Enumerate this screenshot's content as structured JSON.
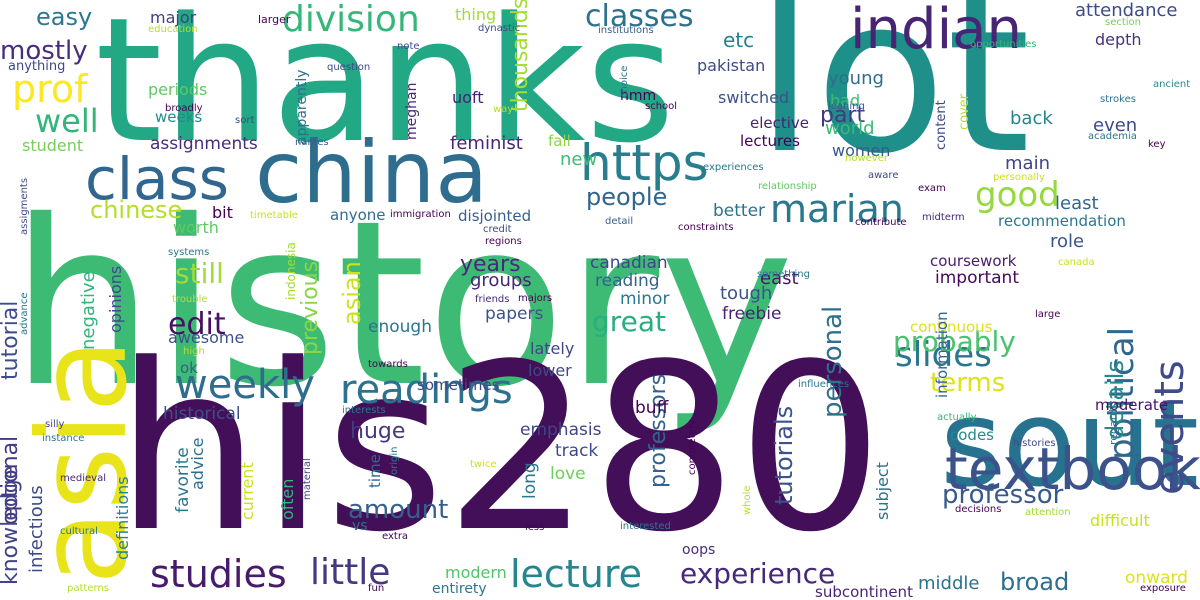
{
  "words": [
    {
      "text": "history",
      "color": "#3dbb74",
      "rot": 0
    },
    {
      "text": "lot",
      "color": "#1f8f8a",
      "rot": 0
    },
    {
      "text": "thanks",
      "color": "#22a884",
      "rot": 0
    },
    {
      "text": "his280",
      "color": "#440f59",
      "rot": 0
    },
    {
      "text": "south",
      "color": "#27728e",
      "rot": 0
    },
    {
      "text": "asia",
      "color": "#e8e419",
      "rot": -90
    },
    {
      "text": "china",
      "color": "#2f6d8e",
      "rot": 0
    },
    {
      "text": "textbook",
      "color": "#3b528b",
      "rot": 0
    },
    {
      "text": "class",
      "color": "#31668e",
      "rot": 0
    },
    {
      "text": "indian",
      "color": "#482474",
      "rot": 0
    },
    {
      "text": "https",
      "color": "#287d8e",
      "rot": 0
    },
    {
      "text": "events",
      "color": "#3e4a89",
      "rot": -90
    },
    {
      "text": "political",
      "color": "#31678e",
      "rot": -90
    },
    {
      "text": "weekly",
      "color": "#2f6c8e",
      "rot": 0
    },
    {
      "text": "readings",
      "color": "#2c728e",
      "rot": 0
    },
    {
      "text": "lecture",
      "color": "#24868e",
      "rot": 0
    },
    {
      "text": "studies",
      "color": "#481a6c",
      "rot": 0
    },
    {
      "text": "little",
      "color": "#453781",
      "rot": 0
    },
    {
      "text": "experience",
      "color": "#482878",
      "rot": 0
    },
    {
      "text": "division",
      "color": "#35b779",
      "rot": 0
    },
    {
      "text": "classes",
      "color": "#2c728e",
      "rot": 0
    },
    {
      "text": "marian",
      "color": "#2a778e",
      "rot": 0
    },
    {
      "text": "good",
      "color": "#95d840",
      "rot": 0
    },
    {
      "text": "slides",
      "color": "#2b758e",
      "rot": 0
    },
    {
      "text": "prof",
      "color": "#fde725",
      "rot": 0
    },
    {
      "text": "well",
      "color": "#31b57b",
      "rot": 0
    },
    {
      "text": "mostly",
      "color": "#472d7b",
      "rot": 0
    },
    {
      "text": "easy",
      "color": "#2a788e",
      "rot": 0
    },
    {
      "text": "optional",
      "color": "#453882",
      "rot": -90
    },
    {
      "text": "tutorial",
      "color": "#3d4d8a",
      "rot": -90
    },
    {
      "text": "knowledge",
      "color": "#414487",
      "rot": -90
    },
    {
      "text": "chinese",
      "color": "#b5de2b",
      "rot": 0
    },
    {
      "text": "edit",
      "color": "#471063",
      "rot": 0
    },
    {
      "text": "still",
      "color": "#a2da37",
      "rot": 0
    },
    {
      "text": "probably",
      "color": "#4ac16d",
      "rot": 0
    },
    {
      "text": "terms",
      "color": "#dde318",
      "rot": 0
    },
    {
      "text": "great",
      "color": "#29af7f",
      "rot": 0
    },
    {
      "text": "professor",
      "color": "#38598c",
      "rot": 0
    },
    {
      "text": "broad",
      "color": "#2e6e8e",
      "rot": 0
    },
    {
      "text": "amount",
      "color": "#355f8d",
      "rot": 0
    },
    {
      "text": "personal",
      "color": "#2e6f8e",
      "rot": -90
    },
    {
      "text": "tutorials",
      "color": "#3b528b",
      "rot": -90
    },
    {
      "text": "professors",
      "color": "#33638d",
      "rot": -90
    },
    {
      "text": "previous",
      "color": "#8bd646",
      "rot": -90
    },
    {
      "text": "asian",
      "color": "#cde11d",
      "rot": -90
    },
    {
      "text": "details",
      "color": "#228c8d",
      "rot": -90
    },
    {
      "text": "thousands",
      "color": "#a8db34",
      "rot": -90
    },
    {
      "text": "part",
      "color": "#453882",
      "rot": 0
    },
    {
      "text": "people",
      "color": "#32658e",
      "rot": 0
    },
    {
      "text": "years",
      "color": "#472a7a",
      "rot": 0
    },
    {
      "text": "huge",
      "color": "#443983",
      "rot": 0
    },
    {
      "text": "etc",
      "color": "#26818e",
      "rot": 0
    },
    {
      "text": "world",
      "color": "#38b977",
      "rot": 0
    },
    {
      "text": "women",
      "color": "#38598c",
      "rot": 0
    },
    {
      "text": "young",
      "color": "#2e6f8e",
      "rot": 0
    },
    {
      "text": "bad",
      "color": "#3dbc74",
      "rot": 0
    },
    {
      "text": "back",
      "color": "#25858e",
      "rot": 0
    },
    {
      "text": "even",
      "color": "#3e4989",
      "rot": 0
    },
    {
      "text": "least",
      "color": "#31668e",
      "rot": 0
    },
    {
      "text": "role",
      "color": "#3a548c",
      "rot": 0
    },
    {
      "text": "main",
      "color": "#404588",
      "rot": 0
    },
    {
      "text": "pakistan",
      "color": "#3e4a89",
      "rot": 0
    },
    {
      "text": "assignments",
      "color": "#472d7b",
      "rot": 0
    },
    {
      "text": "feminist",
      "color": "#482576",
      "rot": 0
    },
    {
      "text": "lectures",
      "color": "#440154",
      "rot": 0
    },
    {
      "text": "elective",
      "color": "#482374",
      "rot": 0
    },
    {
      "text": "switched",
      "color": "#3b528b",
      "rot": 0
    },
    {
      "text": "uoft",
      "color": "#482071",
      "rot": 0
    },
    {
      "text": "attendance",
      "color": "#3e4a89",
      "rot": 0
    },
    {
      "text": "depth",
      "color": "#46337f",
      "rot": 0
    },
    {
      "text": "major",
      "color": "#433e85",
      "rot": 0
    },
    {
      "text": "thing",
      "color": "#a2da37",
      "rot": 0
    },
    {
      "text": "student",
      "color": "#75d054",
      "rot": 0
    },
    {
      "text": "new",
      "color": "#3dbc74",
      "rot": 0
    },
    {
      "text": "fall",
      "color": "#8bd646",
      "rot": 0
    },
    {
      "text": "better",
      "color": "#2c728e",
      "rot": 0
    },
    {
      "text": "bit",
      "color": "#440154",
      "rot": 0
    },
    {
      "text": "east",
      "color": "#481668",
      "rot": 0
    },
    {
      "text": "canadian",
      "color": "#3f4788",
      "rot": 0
    },
    {
      "text": "reading",
      "color": "#33628d",
      "rot": 0
    },
    {
      "text": "minor",
      "color": "#2a788e",
      "rot": 0
    },
    {
      "text": "tough",
      "color": "#3a548c",
      "rot": 0
    },
    {
      "text": "freebie",
      "color": "#482173",
      "rot": 0
    },
    {
      "text": "groups",
      "color": "#482576",
      "rot": 0
    },
    {
      "text": "papers",
      "color": "#3b528b",
      "rot": 0
    },
    {
      "text": "lately",
      "color": "#404588",
      "rot": 0
    },
    {
      "text": "lower",
      "color": "#3e4989",
      "rot": 0
    },
    {
      "text": "enough",
      "color": "#2a768e",
      "rot": 0
    },
    {
      "text": "disjointed",
      "color": "#355f8d",
      "rot": 0
    },
    {
      "text": "anyone",
      "color": "#2e6e8e",
      "rot": 0
    },
    {
      "text": "important",
      "color": "#46085c",
      "rot": 0
    },
    {
      "text": "coursework",
      "color": "#481b6d",
      "rot": 0
    },
    {
      "text": "recommendation",
      "color": "#2a768e",
      "rot": 0
    },
    {
      "text": "continuous",
      "color": "#dde318",
      "rot": 0
    },
    {
      "text": "information",
      "color": "#31678e",
      "rot": -90
    },
    {
      "text": "moderate",
      "color": "#471365",
      "rot": 0
    },
    {
      "text": "codes",
      "color": "#228b8d",
      "rot": 0
    },
    {
      "text": "difficult",
      "color": "#c8e020",
      "rot": 0
    },
    {
      "text": "middle",
      "color": "#2c718e",
      "rot": 0
    },
    {
      "text": "onward",
      "color": "#dde318",
      "rot": 0
    },
    {
      "text": "subcontinent",
      "color": "#482576",
      "rot": 0
    },
    {
      "text": "emphasis",
      "color": "#404588",
      "rot": 0
    },
    {
      "text": "track",
      "color": "#3e4989",
      "rot": 0
    },
    {
      "text": "love",
      "color": "#6ece58",
      "rot": 0
    },
    {
      "text": "long",
      "color": "#2a768e",
      "rot": -90
    },
    {
      "text": "time",
      "color": "#31678e",
      "rot": -90
    },
    {
      "text": "sometimes",
      "color": "#3e4989",
      "rot": 0
    },
    {
      "text": "historical",
      "color": "#3c4f8a",
      "rot": 0
    },
    {
      "text": "awesome",
      "color": "#3b528b",
      "rot": 0
    },
    {
      "text": "ok",
      "color": "#355f8d",
      "rot": 0
    },
    {
      "text": "modern",
      "color": "#50c46a",
      "rot": 0
    },
    {
      "text": "entirety",
      "color": "#2a778e",
      "rot": 0
    },
    {
      "text": "oops",
      "color": "#472d7b",
      "rot": 0
    },
    {
      "text": "favorite",
      "color": "#2a778e",
      "rot": -90
    },
    {
      "text": "advice",
      "color": "#2e6e8e",
      "rot": -90
    },
    {
      "text": "current",
      "color": "#cde11d",
      "rot": -90
    },
    {
      "text": "often",
      "color": "#35b779",
      "rot": -90
    },
    {
      "text": "subject",
      "color": "#2d718e",
      "rot": -90
    },
    {
      "text": "definitions",
      "color": "#26828e",
      "rot": -90
    },
    {
      "text": "infectious",
      "color": "#3e4989",
      "rot": -90
    },
    {
      "text": "negative",
      "color": "#31b57b",
      "rot": -90
    },
    {
      "text": "opinions",
      "color": "#3e4a89",
      "rot": -90
    },
    {
      "text": "buff",
      "color": "#440154",
      "rot": 0
    },
    {
      "text": "vs",
      "color": "#2a768e",
      "rot": 0
    },
    {
      "text": "periods",
      "color": "#5ec962",
      "rot": 0
    },
    {
      "text": "weeks",
      "color": "#228c8d",
      "rot": 0
    },
    {
      "text": "anything",
      "color": "#3e4989",
      "rot": 0
    },
    {
      "text": "hmm",
      "color": "#440154",
      "rot": 0
    },
    {
      "text": "meghan",
      "color": "#482878",
      "rot": -90
    },
    {
      "text": "apparently",
      "color": "#2c728e",
      "rot": -90
    },
    {
      "text": "content",
      "color": "#3e4989",
      "rot": -90
    },
    {
      "text": "cover",
      "color": "#b5de2b",
      "rot": -90
    },
    {
      "text": "worth",
      "color": "#5ec962",
      "rot": 0
    },
    {
      "text": "indonesia",
      "color": "#a2da37",
      "rot": -90
    },
    {
      "text": "regards",
      "color": "#2e6e8e",
      "rot": -90
    },
    {
      "text": "larger",
      "color": "#440154",
      "rot": 0
    },
    {
      "text": "education",
      "color": "#b5de2b",
      "rot": 0
    },
    {
      "text": "dynastic",
      "color": "#3e4989",
      "rot": 0
    },
    {
      "text": "institutions",
      "color": "#355f8d",
      "rot": 0
    },
    {
      "text": "section",
      "color": "#75d054",
      "rot": 0
    },
    {
      "text": "opportunities",
      "color": "#31b57b",
      "rot": 0
    },
    {
      "text": "ancient",
      "color": "#228b8d",
      "rot": 0
    },
    {
      "text": "strokes",
      "color": "#2c728e",
      "rot": 0
    },
    {
      "text": "academia",
      "color": "#2a768e",
      "rot": 0
    },
    {
      "text": "key",
      "color": "#440154",
      "rot": 0
    },
    {
      "text": "leaning",
      "color": "#3a548c",
      "rot": 0
    },
    {
      "text": "school",
      "color": "#440154",
      "rot": 0
    },
    {
      "text": "way",
      "color": "#b5de2b",
      "rot": 0
    },
    {
      "text": "question",
      "color": "#3e4989",
      "rot": 0
    },
    {
      "text": "note",
      "color": "#3e4989",
      "rot": 0
    },
    {
      "text": "choice",
      "color": "#2a768e",
      "rot": -90
    },
    {
      "text": "broadly",
      "color": "#440154",
      "rot": 0
    },
    {
      "text": "sort",
      "color": "#3e4989",
      "rot": 0
    },
    {
      "text": "names",
      "color": "#355f8d",
      "rot": 0
    },
    {
      "text": "experiences",
      "color": "#2a768e",
      "rot": 0
    },
    {
      "text": "relationship",
      "color": "#5ec962",
      "rot": 0
    },
    {
      "text": "personally",
      "color": "#cde11d",
      "rot": 0
    },
    {
      "text": "however",
      "color": "#b5de2b",
      "rot": 0
    },
    {
      "text": "aware",
      "color": "#3e4989",
      "rot": 0
    },
    {
      "text": "exam",
      "color": "#440154",
      "rot": 0
    },
    {
      "text": "midterm",
      "color": "#482878",
      "rot": 0
    },
    {
      "text": "contribute",
      "color": "#440154",
      "rot": 0
    },
    {
      "text": "constraints",
      "color": "#440154",
      "rot": 0
    },
    {
      "text": "detail",
      "color": "#355f8d",
      "rot": 0
    },
    {
      "text": "credit",
      "color": "#3e4989",
      "rot": 0
    },
    {
      "text": "regions",
      "color": "#440154",
      "rot": 0
    },
    {
      "text": "immigration",
      "color": "#440154",
      "rot": 0
    },
    {
      "text": "timetable",
      "color": "#cde11d",
      "rot": 0
    },
    {
      "text": "assigments",
      "color": "#3e4989",
      "rot": -90
    },
    {
      "text": "systems",
      "color": "#2a768e",
      "rot": 0
    },
    {
      "text": "trouble",
      "color": "#b5de2b",
      "rot": 0
    },
    {
      "text": "something",
      "color": "#2a768e",
      "rot": 0
    },
    {
      "text": "canada",
      "color": "#cde11d",
      "rot": 0
    },
    {
      "text": "large",
      "color": "#440154",
      "rot": 0
    },
    {
      "text": "friends",
      "color": "#482878",
      "rot": 0
    },
    {
      "text": "majors",
      "color": "#440154",
      "rot": 0
    },
    {
      "text": "towards",
      "color": "#440154",
      "rot": 0
    },
    {
      "text": "advance",
      "color": "#2a768e",
      "rot": -90
    },
    {
      "text": "high",
      "color": "#b5de2b",
      "rot": 0
    },
    {
      "text": "influences",
      "color": "#2a768e",
      "rot": 0
    },
    {
      "text": "actually",
      "color": "#35b779",
      "rot": 0
    },
    {
      "text": "interests",
      "color": "#2a768e",
      "rot": 0
    },
    {
      "text": "silly",
      "color": "#3e4989",
      "rot": 0
    },
    {
      "text": "instance",
      "color": "#2a768e",
      "rot": 0
    },
    {
      "text": "histories",
      "color": "#3e4989",
      "rot": 0
    },
    {
      "text": "medieval",
      "color": "#482878",
      "rot": 0
    },
    {
      "text": "twice",
      "color": "#cde11d",
      "rot": 0
    },
    {
      "text": "origin",
      "color": "#2a768e",
      "rot": -90
    },
    {
      "text": "completely",
      "color": "#440154",
      "rot": -90
    },
    {
      "text": "material",
      "color": "#3e4989",
      "rot": -90
    },
    {
      "text": "whole",
      "color": "#b5de2b",
      "rot": -90
    },
    {
      "text": "decisions",
      "color": "#440154",
      "rot": 0
    },
    {
      "text": "attention",
      "color": "#a2da37",
      "rot": 0
    },
    {
      "text": "exposure",
      "color": "#440154",
      "rot": 0
    },
    {
      "text": "interested",
      "color": "#2a768e",
      "rot": 0
    },
    {
      "text": "extra",
      "color": "#440154",
      "rot": 0
    },
    {
      "text": "less",
      "color": "#440154",
      "rot": 0
    },
    {
      "text": "cultural",
      "color": "#2a768e",
      "rot": 0
    },
    {
      "text": "patterns",
      "color": "#b5de2b",
      "rot": 0
    },
    {
      "text": "fun",
      "color": "#440154",
      "rot": 0
    }
  ]
}
